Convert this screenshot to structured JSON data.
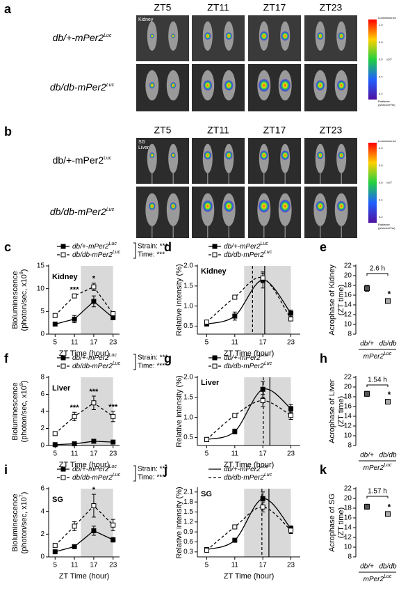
{
  "image_panels": [
    {
      "letter": "a",
      "tissue": [
        "Kidney"
      ],
      "columns": [
        "ZT5",
        "ZT11",
        "ZT17",
        "ZT23"
      ],
      "rows": [
        {
          "text": "db/+-mPer2",
          "sup": "Luc",
          "italic": true
        },
        {
          "text": "db/db-mPer2",
          "sup": "Luc",
          "italic": true
        }
      ],
      "colorbar": {
        "title": "Luminescence",
        "ticks": [
          "1.0",
          "0.8",
          "0.6",
          "0.4",
          "0.2"
        ],
        "unit": "x10⁷",
        "footer": [
          "Radiance",
          "(p/sec/cm²/sr)"
        ]
      }
    },
    {
      "letter": "b",
      "tissue": [
        "SG",
        "Liver"
      ],
      "columns": [
        "ZT5",
        "ZT11",
        "ZT17",
        "ZT23"
      ],
      "rows": [
        {
          "text": "db/+-mPer2",
          "sup": "Luc",
          "italic": false
        },
        {
          "text": "db/db-mPer2",
          "sup": "Luc",
          "italic": true
        }
      ],
      "colorbar": {
        "title": "Luminescence",
        "ticks": [
          "1.0",
          "0.8",
          "0.6",
          "0.4",
          "0.2"
        ],
        "unit": "x10⁷",
        "footer": [
          "Radiance",
          "(p/sec/cm²/sr)"
        ]
      }
    }
  ],
  "chart_data": [
    {
      "letter": "c",
      "type": "line",
      "tissue": "Kidney",
      "xlabel": "ZT Time (hour)",
      "ylabel": [
        "Bioluminescence",
        "(photon/sec, x10"
      ],
      "ylabel_sup": "8",
      "ylabel_end": ")",
      "xlim": [
        3,
        25
      ],
      "xticks": [
        5,
        11,
        17,
        23
      ],
      "ylim": [
        0,
        15
      ],
      "yticks": [
        0,
        5,
        10,
        15
      ],
      "shade": [
        13,
        23
      ],
      "legend_style": "marker",
      "stats": [
        "Strain: ***",
        "Time: ***"
      ],
      "annotations": [
        {
          "x": 11,
          "text": "***"
        },
        {
          "x": 17,
          "text": "*"
        }
      ],
      "series": [
        {
          "name": "db/+-mPer2",
          "name_sup": "Luc",
          "color": "#000000",
          "marker": "filled",
          "dash": false,
          "values": [
            2.2,
            3.3,
            7.2,
            3.6
          ],
          "errors": [
            0.2,
            0.8,
            1.2,
            0.3
          ]
        },
        {
          "name": "db/db-mPer2",
          "name_sup": "Luc",
          "color": "#000000",
          "marker": "open",
          "dash": true,
          "values": [
            4.1,
            8.4,
            10.4,
            4.5
          ],
          "errors": [
            0.3,
            0.4,
            0.8,
            0.3
          ]
        }
      ]
    },
    {
      "letter": "d",
      "type": "line",
      "smooth": true,
      "tissue": "Kidney",
      "xlabel": "ZT Time (hour)",
      "ylabel": [
        "Relative intensity (%)"
      ],
      "xlim": [
        3,
        25
      ],
      "xticks": [
        5,
        11,
        17,
        23
      ],
      "ylim": [
        0.3,
        2.0
      ],
      "yticks": [
        0.5,
        {
          "value": 1,
          "label": "1.0"
        },
        1.5,
        {
          "value": 2,
          "label": "2.0"
        }
      ],
      "shade": [
        13,
        23
      ],
      "legend_style": "marker",
      "series": [
        {
          "name": "db/+-mPer2",
          "name_sup": "Luc",
          "color": "#000000",
          "marker": "filled",
          "dash": false,
          "values": [
            0.55,
            0.75,
            1.65,
            0.82
          ],
          "errors": [
            0.04,
            0.1,
            0.2,
            0.08
          ],
          "vline": 17.4
        },
        {
          "name": "db/db-mPer2",
          "name_sup": "Luc",
          "color": "#000000",
          "marker": "open",
          "dash": true,
          "values": [
            0.6,
            1.22,
            1.7,
            0.68
          ],
          "errors": [
            0.04,
            0.05,
            0.12,
            0.05
          ],
          "vline": 14.8
        }
      ]
    },
    {
      "letter": "e",
      "type": "dot",
      "ylabel": [
        "Acrophase of Kidney",
        "(ZT time)"
      ],
      "categories": [
        "db/+",
        "db/db"
      ],
      "group_label": "mPer2",
      "group_sup": "Luc",
      "ylim": [
        8,
        22
      ],
      "yticks": [
        8,
        10,
        12,
        14,
        16,
        18,
        20,
        22
      ],
      "bracket_label": "2.6 h",
      "star": "*",
      "values": [
        17.4,
        14.8
      ],
      "errors": [
        0.6,
        0.3
      ],
      "colors": [
        "#555555",
        "#aaaaaa"
      ]
    },
    {
      "letter": "f",
      "type": "line",
      "tissue": "Liver",
      "xlabel": "ZT Time (hour)",
      "ylabel": [
        "Bioluminescence",
        "(photon/sec, x10"
      ],
      "ylabel_sup": "8",
      "ylabel_end": ")",
      "xlim": [
        3,
        25
      ],
      "xticks": [
        5,
        11,
        17,
        23
      ],
      "ylim": [
        0,
        8
      ],
      "yticks": [
        0,
        2,
        4,
        6,
        8
      ],
      "shade": [
        13,
        23
      ],
      "legend_style": "marker",
      "stats": [
        "Strain: ***",
        "Time: ***"
      ],
      "annotations": [
        {
          "x": 11,
          "text": "***"
        },
        {
          "x": 17,
          "text": "***"
        },
        {
          "x": 23,
          "text": "***"
        }
      ],
      "series": [
        {
          "name": "db/+-mPer2",
          "name_sup": "Luc",
          "color": "#000000",
          "marker": "filled",
          "dash": false,
          "values": [
            0.1,
            0.2,
            0.5,
            0.4
          ],
          "errors": [
            0.02,
            0.04,
            0.08,
            0.06
          ]
        },
        {
          "name": "db/db-mPer2",
          "name_sup": "Luc",
          "color": "#000000",
          "marker": "open",
          "dash": true,
          "values": [
            1.4,
            3.4,
            5.0,
            3.4
          ],
          "errors": [
            0.2,
            0.5,
            0.8,
            0.6
          ]
        }
      ]
    },
    {
      "letter": "g",
      "type": "line",
      "smooth": true,
      "tissue": "Liver",
      "xlabel": "ZT Time (hour)",
      "ylabel": [
        "Relative intensity (%)"
      ],
      "xlim": [
        3,
        25
      ],
      "xticks": [
        5,
        11,
        17,
        23
      ],
      "ylim": [
        0.3,
        2.0
      ],
      "yticks": [
        0.5,
        {
          "value": 1,
          "label": "1.0"
        },
        1.5,
        {
          "value": 2,
          "label": "2.0"
        }
      ],
      "shade": [
        13,
        23
      ],
      "legend_style": "marker",
      "series": [
        {
          "name": "db/+-mPer2",
          "name_sup": "Luc",
          "color": "#000000",
          "marker": "filled",
          "dash": false,
          "values": [
            0.45,
            0.65,
            1.7,
            1.22
          ],
          "errors": [
            0.03,
            0.06,
            0.2,
            0.1
          ],
          "vline": 18.5
        },
        {
          "name": "db/db-mPer2",
          "name_sup": "Luc",
          "color": "#000000",
          "marker": "open",
          "dash": true,
          "values": [
            0.45,
            1.05,
            1.42,
            1.05
          ],
          "errors": [
            0.03,
            0.05,
            0.15,
            0.1
          ],
          "vline": 17.1
        }
      ]
    },
    {
      "letter": "h",
      "type": "dot",
      "ylabel": [
        "Acrophase of Liver",
        "(ZT time)"
      ],
      "categories": [
        "db/+",
        "db/db"
      ],
      "group_label": "mPer2",
      "group_sup": "Luc",
      "ylim": [
        8,
        22
      ],
      "yticks": [
        8,
        10,
        12,
        14,
        16,
        18,
        20,
        22
      ],
      "bracket_label": "1.54 h",
      "star": "*",
      "values": [
        18.6,
        17.0
      ],
      "errors": [
        0.5,
        0.3
      ],
      "colors": [
        "#555555",
        "#aaaaaa"
      ]
    },
    {
      "letter": "i",
      "type": "line",
      "tissue": "SG",
      "xlabel": "ZT Time (hour)",
      "ylabel": [
        "Bioluminescence",
        "(photon/sec, x10"
      ],
      "ylabel_sup": "7",
      "ylabel_end": ")",
      "xlim": [
        3,
        25
      ],
      "xticks": [
        5,
        11,
        17,
        23
      ],
      "ylim": [
        0,
        6
      ],
      "yticks": [
        0,
        2,
        4,
        6
      ],
      "shade": [
        13,
        23
      ],
      "legend_style": "marker",
      "stats": [
        "Strain: ***",
        "Time: ***"
      ],
      "annotations": [
        {
          "x": 17,
          "text": "*"
        }
      ],
      "series": [
        {
          "name": "db/+-mPer2",
          "name_sup": "Luc",
          "color": "#000000",
          "marker": "filled",
          "dash": false,
          "values": [
            0.45,
            0.9,
            2.3,
            1.5
          ],
          "errors": [
            0.05,
            0.08,
            0.4,
            0.2
          ]
        },
        {
          "name": "db/db-mPer2",
          "name_sup": "Luc",
          "color": "#000000",
          "marker": "open",
          "dash": true,
          "values": [
            1.0,
            2.7,
            4.5,
            2.8
          ],
          "errors": [
            0.1,
            0.4,
            1.0,
            0.5
          ]
        }
      ]
    },
    {
      "letter": "j",
      "type": "line",
      "smooth": true,
      "tissue": "SG",
      "xlabel": "ZT Time (hour)",
      "ylabel": [
        "Relative intensity (%)"
      ],
      "xlim": [
        3,
        25
      ],
      "xticks": [
        5,
        11,
        17,
        23
      ],
      "ylim": [
        0.15,
        2.2
      ],
      "yticks": [
        0.3,
        0.6,
        0.9,
        1.2,
        1.5,
        1.8,
        2.1
      ],
      "shade": [
        13,
        23
      ],
      "legend_style": "line",
      "series": [
        {
          "name": "db/+-mPer2",
          "name_sup": "Luc",
          "color": "#000000",
          "marker": "filled",
          "dash": false,
          "values": [
            0.37,
            0.65,
            1.9,
            1.0
          ],
          "errors": [
            0.03,
            0.04,
            0.2,
            0.08
          ],
          "vline": 18.3
        },
        {
          "name": "db/db-mPer2",
          "name_sup": "Luc",
          "color": "#000000",
          "marker": "open",
          "dash": true,
          "values": [
            0.35,
            1.05,
            1.65,
            0.95
          ],
          "errors": [
            0.03,
            0.06,
            0.15,
            0.1
          ],
          "vline": 16.8
        }
      ]
    },
    {
      "letter": "k",
      "type": "dot",
      "ylabel": [
        "Acrophase of SG",
        "(ZT time)"
      ],
      "categories": [
        "db/+",
        "db/db"
      ],
      "group_label": "mPer2",
      "group_sup": "Luc",
      "ylim": [
        8,
        22
      ],
      "yticks": [
        8,
        10,
        12,
        14,
        16,
        18,
        20,
        22
      ],
      "bracket_label": "1.57 h",
      "star": "*",
      "values": [
        18.3,
        16.8
      ],
      "errors": [
        0.5,
        0.3
      ],
      "colors": [
        "#555555",
        "#aaaaaa"
      ]
    }
  ]
}
